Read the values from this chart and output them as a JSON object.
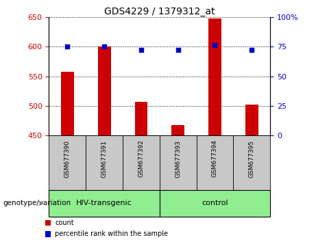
{
  "title": "GDS4229 / 1379312_at",
  "samples": [
    "GSM677390",
    "GSM677391",
    "GSM677392",
    "GSM677393",
    "GSM677394",
    "GSM677395"
  ],
  "counts": [
    557,
    600,
    507,
    468,
    648,
    502
  ],
  "percentiles": [
    75,
    75,
    72,
    72,
    76,
    72
  ],
  "ylim_left": [
    450,
    650
  ],
  "ylim_right": [
    0,
    100
  ],
  "yticks_left": [
    450,
    500,
    550,
    600,
    650
  ],
  "yticks_right": [
    0,
    25,
    50,
    75,
    100
  ],
  "bar_color": "#cc0000",
  "marker_color": "#0000cc",
  "bar_width": 0.35,
  "groups": [
    {
      "label": "HIV-transgenic",
      "start": 0,
      "end": 3,
      "color": "#90ee90"
    },
    {
      "label": "control",
      "start": 3,
      "end": 6,
      "color": "#90ee90"
    }
  ],
  "group_label": "genotype/variation",
  "legend_items": [
    {
      "label": "count",
      "color": "#cc0000"
    },
    {
      "label": "percentile rank within the sample",
      "color": "#0000cc"
    }
  ],
  "bg_color": "#c8c8c8",
  "plot_bg": "#ffffff",
  "title_fontsize": 10,
  "tick_fontsize": 8,
  "label_fontsize": 8
}
